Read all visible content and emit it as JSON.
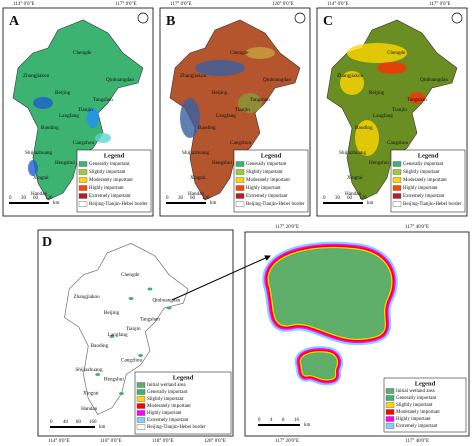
{
  "top_panels": [
    {
      "letter": "A",
      "top_axis": [
        "114° 0'0\"E",
        "117° 0'0\"E"
      ]
    },
    {
      "letter": "B",
      "top_axis": [
        "117° 0'0\"E",
        "120° 0'0\"E"
      ]
    },
    {
      "letter": "C",
      "top_axis": [
        "114° 0'0\"E",
        "117° 0'0\"E"
      ]
    }
  ],
  "cities": [
    "Chengde",
    "Zhangjiakou",
    "Beijing",
    "Qinhuangdao",
    "Tangshan",
    "Tianjin",
    "Langfang",
    "Baoding",
    "Cangzhou",
    "Shijiazhuang",
    "Hengshui",
    "Xingtai",
    "Handan"
  ],
  "legend": {
    "title": "Legend",
    "items": [
      "Generally important",
      "Slightly important",
      "Moderately important",
      "Highly important",
      "Extremely important",
      "Beijing-Tianjin-Hebei border"
    ]
  },
  "scale": {
    "ticks": [
      0,
      30,
      60,
      120
    ],
    "unit": "km"
  },
  "panel_d": {
    "letter": "D",
    "bottom_axis": [
      "114° 0'0\"E",
      "116° 0'0\"E",
      "118° 0'0\"E",
      "120° 0'0\"E"
    ],
    "legend": {
      "title": "Legend",
      "items": [
        "Initial wetland area",
        "Generally important",
        "Slightly important",
        "Moderately important",
        "Highly important",
        "Extremely important",
        "Beijing-Tianjin-Hebei border"
      ]
    },
    "scale": {
      "ticks": [
        0,
        40,
        80,
        160
      ],
      "unit": "km"
    }
  },
  "zoom_panel": {
    "top_axis": [
      "117° 20'0\"E",
      "117° 40'0\"E"
    ],
    "bottom_axis": [
      "117° 20'0\"E",
      "117° 40'0\"E"
    ],
    "legend": {
      "title": "Legend",
      "items": [
        "Initial wetland area",
        "Generally important",
        "Slightly important",
        "Moderately important",
        "Highly important",
        "Extremely important"
      ]
    },
    "scale": {
      "ticks": [
        0,
        4,
        8,
        16
      ],
      "unit": "km"
    }
  }
}
